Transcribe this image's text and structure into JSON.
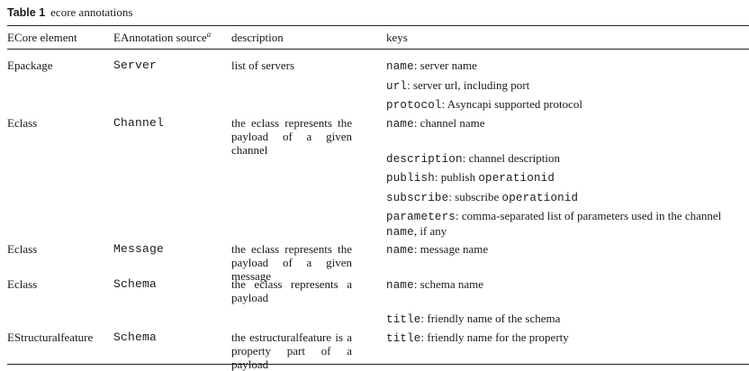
{
  "caption": {
    "label": "Table 1",
    "text": "ecore annotations"
  },
  "headers": {
    "element": "ECore element",
    "source": "EAnnotation source",
    "source_sup": "a",
    "description": "description",
    "keys": "keys"
  },
  "rows": [
    {
      "element": "Epackage",
      "source": "Server",
      "description": "list of servers",
      "keys": [
        {
          "key": "name",
          "text": ": server name"
        },
        {
          "key": "url",
          "text": ": server url, including port"
        },
        {
          "key": "protocol",
          "text": ": Asyncapi supported protocol"
        }
      ]
    },
    {
      "element": "Eclass",
      "source": "Channel",
      "description": "the eclass represents the payload of a given channel",
      "keys": [
        {
          "key": "name",
          "text": ": channel name"
        },
        {
          "key": "description",
          "text": ": channel description"
        },
        {
          "key": "publish",
          "text": ": publish ",
          "key2": "operationid"
        },
        {
          "key": "subscribe",
          "text": ": subscribe ",
          "key2": "operationid"
        },
        {
          "key": "parameters",
          "text": ": comma-separated list of parameters used in the channel",
          "line2_key": "name",
          "line2_text": ", if any"
        }
      ]
    },
    {
      "element": "Eclass",
      "source": "Message",
      "description": "the eclass represents the payload of a given message",
      "keys": [
        {
          "key": "name",
          "text": ": message name"
        }
      ]
    },
    {
      "element": "Eclass",
      "source": "Schema",
      "description": "the eclass represents a payload",
      "keys": [
        {
          "key": "name",
          "text": ": schema name"
        },
        {
          "key": "title",
          "text": ": friendly name of the schema"
        }
      ]
    },
    {
      "element": "EStructuralfeature",
      "source": "Schema",
      "description": "the estructuralfeature is a property part of a payload",
      "keys": [
        {
          "key": "title",
          "text": ": friendly name for the property"
        }
      ]
    }
  ]
}
